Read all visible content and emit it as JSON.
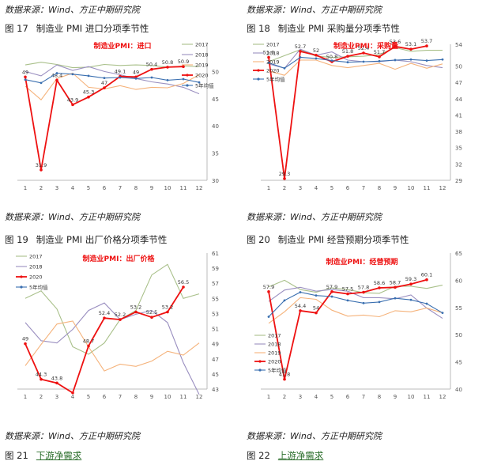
{
  "captions": {
    "source": "数据来源：Wind、方正中期研究院",
    "fig17_num": "图 17",
    "fig17": "制造业 PMI 进口分项季节性",
    "fig18_num": "图 18",
    "fig18": "制造业 PMI 采购量分项季节性",
    "fig19_num": "图 19",
    "fig19": "制造业 PMI 出厂价格分项季节性",
    "fig20_num": "图 20",
    "fig20": "制造业 PMI 经营预期分项季节性",
    "fig21_num": "图 21",
    "fig21": "下游净需求",
    "fig22_num": "图 22",
    "fig22": "上游净需求"
  },
  "chart_data": [
    {
      "type": "line",
      "title": "制造业PMI：进口",
      "x": [
        1,
        2,
        3,
        4,
        5,
        6,
        7,
        8,
        9,
        10,
        11,
        12
      ],
      "ylim": [
        30,
        55
      ],
      "yticks": [
        30,
        35,
        40,
        45,
        50
      ],
      "yaxis_side": "right",
      "series": [
        {
          "name": "2017",
          "color": "#a9c08a",
          "values": [
            51.2,
            51.7,
            51.3,
            50.7,
            50.8,
            51.3,
            51.1,
            51.2,
            51.1,
            50.8,
            51.0,
            50.9
          ]
        },
        {
          "name": "2018",
          "color": "#9a8fc0",
          "values": [
            50.0,
            49.2,
            51.2,
            50.2,
            50.9,
            50.0,
            49.4,
            48.7,
            48.1,
            47.7,
            47.1,
            45.9
          ]
        },
        {
          "name": "2019",
          "color": "#f5b27a",
          "values": [
            47.3,
            44.8,
            48.7,
            49.7,
            47.1,
            46.8,
            47.4,
            46.7,
            47.1,
            47.0,
            47.8,
            49.4
          ]
        },
        {
          "name": "2020",
          "color": "#ee1111",
          "values": [
            49.0,
            31.9,
            48.4,
            43.9,
            45.3,
            47.0,
            49.1,
            49.0,
            50.4,
            50.8,
            50.9,
            null
          ],
          "labels": [
            "49",
            "31.9",
            "48.4",
            "43.9",
            "45.3",
            "47",
            "49.1",
            "49",
            "50.4",
            "50.8",
            "50.9",
            ""
          ]
        },
        {
          "name": "5年均值",
          "color": "#3a6fb0",
          "values": [
            48.5,
            47.9,
            49.7,
            49.5,
            49.2,
            48.8,
            48.9,
            48.7,
            48.9,
            48.4,
            48.6,
            48.0
          ]
        }
      ]
    },
    {
      "type": "line",
      "title": "制造业PMI：采购量",
      "x": [
        1,
        2,
        3,
        4,
        5,
        6,
        7,
        8,
        9,
        10,
        11,
        12
      ],
      "ylim": [
        29,
        54
      ],
      "yticks": [
        29,
        32,
        35,
        38,
        41,
        44,
        47,
        50,
        54
      ],
      "yaxis_side": "right",
      "series": [
        {
          "name": "2017",
          "color": "#a9c08a",
          "values": [
            50.8,
            51.9,
            53.0,
            51.8,
            51.6,
            51.7,
            51.8,
            52.1,
            53.4,
            52.7,
            52.9,
            52.9
          ]
        },
        {
          "name": "2018",
          "color": "#9a8fc0",
          "values": [
            50.4,
            49.6,
            53.1,
            52.0,
            52.6,
            51.1,
            50.8,
            50.8,
            51.1,
            50.8,
            50.1,
            49.7
          ]
        },
        {
          "name": "2019",
          "color": "#f5b27a",
          "values": [
            49.1,
            48.3,
            51.1,
            51.1,
            50.1,
            49.7,
            50.1,
            50.5,
            49.4,
            50.5,
            49.6,
            50.4
          ]
        },
        {
          "name": "2020",
          "color": "#ee1111",
          "values": [
            51.6,
            29.3,
            52.7,
            52.0,
            50.8,
            51.8,
            52.4,
            51.7,
            53.6,
            53.1,
            53.7,
            null
          ],
          "labels": [
            "51.6",
            "29.3",
            "52.7",
            "52",
            "50.8",
            "51.8",
            "52.4",
            "51.7",
            "53.6",
            "53.1",
            "53.7",
            ""
          ]
        },
        {
          "name": "5年均值",
          "color": "#3a6fb0",
          "values": [
            50.6,
            49.6,
            51.6,
            51.4,
            51.0,
            50.7,
            50.8,
            50.9,
            51.1,
            51.2,
            51.0,
            51.2
          ]
        }
      ]
    },
    {
      "type": "line",
      "title": "制造业PMI：出厂价格",
      "x": [
        1,
        2,
        3,
        4,
        5,
        6,
        7,
        8,
        9,
        10,
        11,
        12
      ],
      "ylim": [
        43,
        61
      ],
      "yticks": [
        43,
        45,
        47,
        49,
        51,
        53,
        55,
        57,
        59,
        61
      ],
      "yaxis_side": "right",
      "series": [
        {
          "name": "2017",
          "color": "#a9c08a",
          "values": [
            55.0,
            56.0,
            53.6,
            48.6,
            47.6,
            49.1,
            52.2,
            53.4,
            58.1,
            59.5,
            55.0,
            55.6
          ]
        },
        {
          "name": "2018",
          "color": "#9a8fc0",
          "values": [
            51.8,
            49.4,
            49.1,
            50.9,
            53.4,
            54.4,
            52.2,
            52.9,
            53.4,
            51.8,
            46.5,
            42.3
          ]
        },
        {
          "name": "2019",
          "color": "#f5b27a",
          "values": [
            46.1,
            48.9,
            51.6,
            52.0,
            48.6,
            45.4,
            46.3,
            46.0,
            46.7,
            48.0,
            47.5,
            49.1
          ]
        },
        {
          "name": "2020",
          "color": "#ee1111",
          "values": [
            49.0,
            44.3,
            43.8,
            42.5,
            48.7,
            52.4,
            52.2,
            53.2,
            52.5,
            53.2,
            56.5,
            null
          ],
          "labels": [
            "49",
            "44.3",
            "43.8",
            "",
            "48.7",
            "52.4",
            "52.2",
            "53.2",
            "52.5",
            "53.2",
            "56.5",
            ""
          ]
        },
        {
          "name": "5年均值",
          "color": "#3a6fb0",
          "values": [
            null,
            null,
            null,
            null,
            null,
            null,
            null,
            null,
            null,
            null,
            null,
            null
          ]
        }
      ]
    },
    {
      "type": "line",
      "title": "制造业PMI：经营预期",
      "x": [
        1,
        2,
        3,
        4,
        5,
        6,
        7,
        8,
        9,
        10,
        11,
        12
      ],
      "ylim": [
        40,
        65
      ],
      "yticks": [
        40,
        45,
        50,
        55,
        60,
        65
      ],
      "yaxis_side": "right",
      "series": [
        {
          "name": "2017",
          "color": "#a9c08a",
          "values": [
            58.8,
            60.0,
            58.3,
            57.8,
            58.6,
            58.3,
            57.7,
            57.6,
            58.9,
            58.9,
            58.5,
            59.1
          ]
        },
        {
          "name": "2018",
          "color": "#9a8fc0",
          "values": [
            56.1,
            58.2,
            58.7,
            58.0,
            58.3,
            58.0,
            56.8,
            56.8,
            56.6,
            57.3,
            54.9,
            53.0
          ]
        },
        {
          "name": "2019",
          "color": "#f5b27a",
          "values": [
            52.1,
            54.2,
            56.8,
            56.5,
            54.5,
            53.4,
            53.6,
            53.3,
            54.4,
            54.2,
            54.9,
            54.0
          ]
        },
        {
          "name": "2020",
          "color": "#ee1111",
          "values": [
            57.9,
            41.8,
            54.4,
            54.0,
            57.9,
            57.5,
            57.8,
            58.6,
            58.7,
            59.3,
            60.1,
            null
          ],
          "labels": [
            "57.9",
            "41.8",
            "54.4",
            "54",
            "57.9",
            "57.5",
            "57.8",
            "58.6",
            "58.7",
            "59.3",
            "60.1",
            ""
          ]
        },
        {
          "name": "5年均值",
          "color": "#3a6fb0",
          "values": [
            53.3,
            56.3,
            57.8,
            57.2,
            57.0,
            56.3,
            55.8,
            56.0,
            56.7,
            56.4,
            55.7,
            54.0
          ]
        }
      ]
    }
  ]
}
